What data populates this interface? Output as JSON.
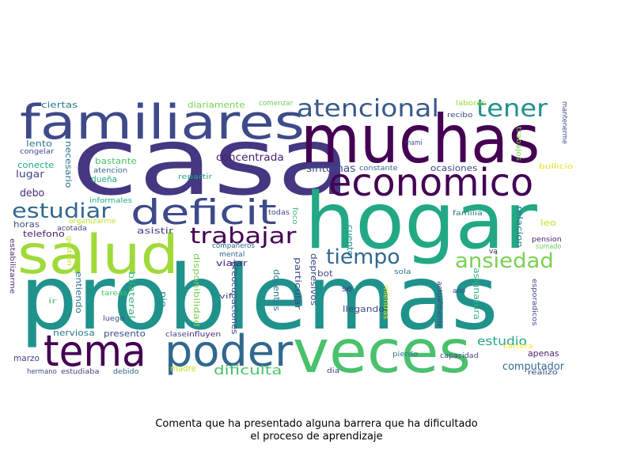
{
  "colors": {
    "background": "#ffffff",
    "caption": "#000000"
  },
  "caption": {
    "line1": "Comenta que ha presentado alguna barrera que ha dificultado",
    "line2": "el proceso de aprendizaje"
  },
  "words": [
    {
      "id": "casa",
      "text": "casa"
    },
    {
      "id": "problemas",
      "text": "problemas"
    },
    {
      "id": "hogar",
      "text": "hogar"
    },
    {
      "id": "muchas",
      "text": "muchas"
    },
    {
      "id": "familiares",
      "text": "familiares"
    },
    {
      "id": "salud",
      "text": "salud"
    },
    {
      "id": "veces",
      "text": "veces"
    },
    {
      "id": "economico",
      "text": "economico"
    },
    {
      "id": "tema",
      "text": "tema"
    },
    {
      "id": "poder",
      "text": "poder"
    },
    {
      "id": "deficit",
      "text": "deficit"
    },
    {
      "id": "atencional",
      "text": "atencional"
    },
    {
      "id": "tener",
      "text": "tener"
    },
    {
      "id": "estudiar",
      "text": "estudiar"
    },
    {
      "id": "trabajar",
      "text": "trabajar"
    },
    {
      "id": "tiempo",
      "text": "tiempo"
    },
    {
      "id": "ansiedad",
      "text": "ansiedad"
    },
    {
      "id": "dificulta",
      "text": "dificulta"
    },
    {
      "id": "estudio",
      "text": "estudio"
    },
    {
      "id": "computador",
      "text": "computador"
    },
    {
      "id": "concentrada",
      "text": "concentrada"
    },
    {
      "id": "sintomas",
      "text": "sintomas"
    },
    {
      "id": "ocasiones",
      "text": "ocasiones"
    },
    {
      "id": "ciertas",
      "text": "ciertas"
    },
    {
      "id": "diariamente",
      "text": "diariamente"
    },
    {
      "id": "comenzar",
      "text": "comenzar"
    },
    {
      "id": "labores",
      "text": "labores"
    },
    {
      "id": "recibo",
      "text": "recibo"
    },
    {
      "id": "mantenerme",
      "text": "mantenerme"
    },
    {
      "id": "congelar",
      "text": "congelar"
    },
    {
      "id": "lento",
      "text": "lento"
    },
    {
      "id": "conecte",
      "text": "conecte"
    },
    {
      "id": "lugar",
      "text": "lugar"
    },
    {
      "id": "debo",
      "text": "debo"
    },
    {
      "id": "necesario",
      "text": "necesario"
    },
    {
      "id": "bastante",
      "text": "bastante"
    },
    {
      "id": "atencion",
      "text": "atencion"
    },
    {
      "id": "duena",
      "text": "dueña"
    },
    {
      "id": "repartir",
      "text": "repartir"
    },
    {
      "id": "constante",
      "text": "constante"
    },
    {
      "id": "mami",
      "text": "mami"
    },
    {
      "id": "trabajos",
      "text": "trabajos"
    },
    {
      "id": "bullicio",
      "text": "bullicio"
    },
    {
      "id": "informales",
      "text": "informales"
    },
    {
      "id": "todas",
      "text": "todas"
    },
    {
      "id": "foco",
      "text": "foco"
    },
    {
      "id": "familia",
      "text": "familia"
    },
    {
      "id": "leo",
      "text": "leo"
    },
    {
      "id": "relacion",
      "text": "relacion"
    },
    {
      "id": "horas",
      "text": "horas"
    },
    {
      "id": "organizarme",
      "text": "organizarme"
    },
    {
      "id": "acotada",
      "text": "acotada"
    },
    {
      "id": "asistir",
      "text": "asistir"
    },
    {
      "id": "telefono",
      "text": "telefono"
    },
    {
      "id": "gestion",
      "text": "gestión"
    },
    {
      "id": "companeros",
      "text": "compañeros"
    },
    {
      "id": "mental",
      "text": "mental"
    },
    {
      "id": "cuento",
      "text": "cuento"
    },
    {
      "id": "pension",
      "text": "pension"
    },
    {
      "id": "sumado",
      "text": "sumado"
    },
    {
      "id": "estabilizarme",
      "text": "estabilizarme"
    },
    {
      "id": "viajar",
      "text": "viajar"
    },
    {
      "id": "bot",
      "text": "bot"
    },
    {
      "id": "se",
      "text": "se"
    },
    {
      "id": "va",
      "text": "va"
    },
    {
      "id": "sola",
      "text": "sola"
    },
    {
      "id": "entiendo",
      "text": "entiendo"
    },
    {
      "id": "bilateral",
      "text": "bilateral"
    },
    {
      "id": "disponibilidad",
      "text": "disponibilidad"
    },
    {
      "id": "preocupaciones",
      "text": "preocupaciones"
    },
    {
      "id": "docentes",
      "text": "docentes"
    },
    {
      "id": "particular",
      "text": "particular"
    },
    {
      "id": "depresivos",
      "text": "depresivos"
    },
    {
      "id": "asignatura",
      "text": "asignatura"
    },
    {
      "id": "ano",
      "text": "ano"
    },
    {
      "id": "tareas",
      "text": "tareas"
    },
    {
      "id": "pie",
      "text": "pie"
    },
    {
      "id": "vif",
      "text": "vif"
    },
    {
      "id": "ir",
      "text": "ir"
    },
    {
      "id": "luego",
      "text": "luego"
    },
    {
      "id": "nerviosa",
      "text": "nerviosa"
    },
    {
      "id": "llegando",
      "text": "llegando"
    },
    {
      "id": "mientras",
      "text": "mientras"
    },
    {
      "id": "actualmente",
      "text": "actualmente"
    },
    {
      "id": "esporadicos",
      "text": "esporadicos"
    },
    {
      "id": "presento",
      "text": "presento"
    },
    {
      "id": "clase",
      "text": "clase"
    },
    {
      "id": "influyen",
      "text": "influyen"
    },
    {
      "id": "marzo",
      "text": "marzo"
    },
    {
      "id": "madre",
      "text": "madre"
    },
    {
      "id": "apenas",
      "text": "apenas"
    },
    {
      "id": "pierdo",
      "text": "pierdo"
    },
    {
      "id": "capacidad",
      "text": "capacidad"
    },
    {
      "id": "carrera",
      "text": "carrera"
    },
    {
      "id": "hermano",
      "text": "hermano"
    },
    {
      "id": "estudiaba",
      "text": "estudiaba"
    },
    {
      "id": "debido",
      "text": "debido"
    },
    {
      "id": "dia",
      "text": "dia"
    },
    {
      "id": "realizo",
      "text": "realizo"
    }
  ]
}
